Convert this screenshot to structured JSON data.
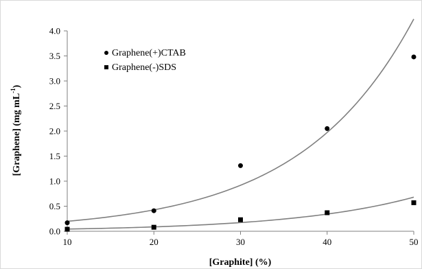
{
  "chart_data": {
    "type": "scatter",
    "title": "",
    "xlabel": "[Graphite] (%)",
    "ylabel_main": "[Graphene] (mg mL",
    "ylabel_sup": "-1",
    "ylabel_close": ")",
    "xlim": [
      10,
      50
    ],
    "ylim": [
      0,
      4
    ],
    "xticks": [
      10,
      20,
      30,
      40,
      50
    ],
    "yticks": [
      "0.0",
      "0.5",
      "1.0",
      "1.5",
      "2.0",
      "2.5",
      "3.0",
      "3.5",
      "4.0"
    ],
    "grid": false,
    "legend_position": "top-left",
    "series": [
      {
        "name": "Graphene(+)CTAB",
        "marker": "circle",
        "color": "#000000",
        "x": [
          10,
          20,
          30,
          40,
          50
        ],
        "y": [
          0.17,
          0.41,
          1.31,
          2.05,
          3.48
        ],
        "fit": "exponential"
      },
      {
        "name": "Graphene(-)SDS",
        "marker": "square",
        "color": "#000000",
        "x": [
          10,
          20,
          30,
          40,
          50
        ],
        "y": [
          0.04,
          0.08,
          0.23,
          0.37,
          0.57
        ],
        "fit": "exponential"
      }
    ],
    "trend_color": "#7f7f7f"
  }
}
